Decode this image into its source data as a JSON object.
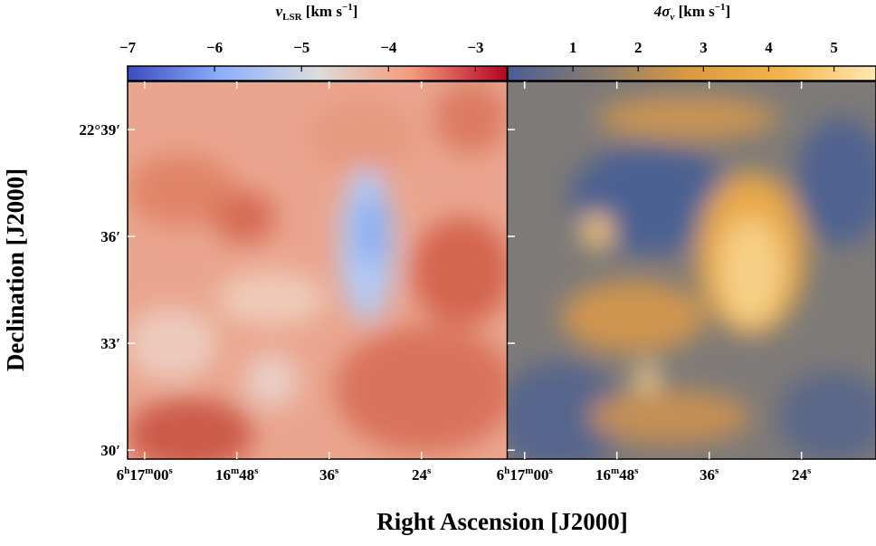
{
  "chart_data": [
    {
      "type": "image",
      "colorbar": {
        "label": [
          "v",
          "LSR",
          " [km s",
          "−1",
          "]"
        ],
        "lim": [
          -7,
          -2.64
        ],
        "ticks": [
          {
            "value": -7,
            "label": "−7"
          },
          {
            "value": -6,
            "label": "−6"
          },
          {
            "value": -5,
            "label": "−5"
          },
          {
            "value": -4,
            "label": "−4"
          },
          {
            "value": -3,
            "label": "−3"
          }
        ],
        "cmap": [
          "#3b4cc0",
          "#8db0fe",
          "#dddcdc",
          "#f49a7b",
          "#b40426"
        ]
      },
      "xlabel": "Right Ascension [J2000]",
      "ylabel": "Declination [J2000]",
      "xlim": [
        62.2,
        12.9
      ],
      "xticks": [
        {
          "value": 60,
          "label": "6h17m00s"
        },
        {
          "value": 48,
          "label": "16m48s"
        },
        {
          "value": 36,
          "label": "36s"
        },
        {
          "value": 24,
          "label": "24s"
        }
      ],
      "ylim": [
        29.75,
        40.35
      ],
      "yticks": [
        {
          "value": 39,
          "label": "22°39′"
        },
        {
          "value": 36,
          "label": "36′"
        },
        {
          "value": 33,
          "label": "33′"
        },
        {
          "value": 30,
          "label": "30′"
        }
      ]
    },
    {
      "type": "image",
      "colorbar": {
        "label": [
          "4σ",
          "v",
          " [km s",
          "−1",
          "]"
        ],
        "lim": [
          0,
          5.81
        ],
        "ticks": [
          1,
          2,
          3,
          4,
          5
        ],
        "cmap": [
          "#4a5e94",
          "#8a7d6e",
          "#dc9a40",
          "#f3b44e",
          "#fde9b4"
        ]
      },
      "xlim": [
        62.2,
        12.9
      ],
      "xticks": [
        {
          "value": 60,
          "label": "6h17m00s"
        },
        {
          "value": 48,
          "label": "16m48s"
        },
        {
          "value": 36,
          "label": "36s"
        },
        {
          "value": 24,
          "label": "24s"
        }
      ],
      "ylim": [
        29.75,
        40.35
      ]
    }
  ]
}
